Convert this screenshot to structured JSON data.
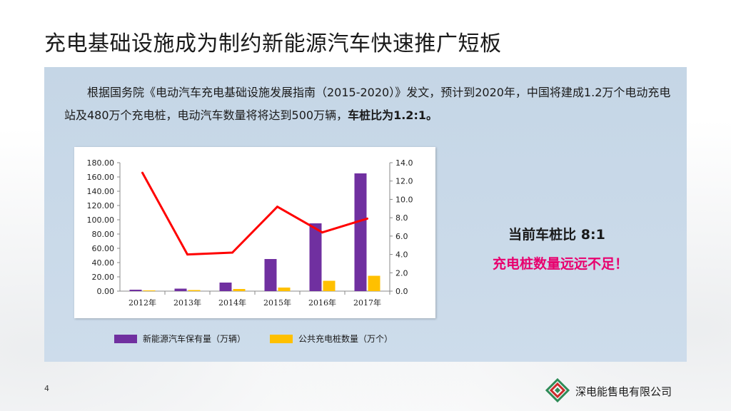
{
  "slide": {
    "title": "充电基础设施成为制约新能源汽车快速推广短板",
    "page_number": "4",
    "company": "深电能售电有限公司"
  },
  "intro": {
    "text_part1": "根据国务院《电动汽车充电基础设施发展指南（2015-2020）》发文，预计到2020年，中国将建成1.2万个电动充电站及480万个充电桩，电动汽车数量将将达到500万辆，",
    "text_bold": "车桩比为1.2:1。"
  },
  "callouts": {
    "ratio": "当前车桩比 8:1",
    "shortage": "充电桩数量远远不足！"
  },
  "colors": {
    "vehicles": "#7030a0",
    "piles": "#ffc000",
    "ratio_line": "#ff0000",
    "panel_bg": "#c9d9e9",
    "highlight": "#e8006e"
  },
  "chart_data": {
    "type": "bar",
    "categories": [
      "2012年",
      "2013年",
      "2014年",
      "2015年",
      "2016年",
      "2017年"
    ],
    "series": [
      {
        "name": "新能源汽车保有量（万辆）",
        "type": "bar",
        "axis": "left",
        "values": [
          2.0,
          3.5,
          12.0,
          45.0,
          95.0,
          165.0
        ]
      },
      {
        "name": "公共充电桩数量（万个）",
        "type": "bar",
        "axis": "left",
        "values": [
          1.0,
          1.5,
          3.0,
          5.0,
          14.5,
          21.5
        ]
      },
      {
        "name": "",
        "type": "line",
        "axis": "right",
        "values": [
          12.9,
          4.0,
          4.2,
          9.2,
          6.4,
          7.9
        ]
      }
    ],
    "y_left": {
      "ylim": [
        0,
        180
      ],
      "ticks": [
        "0.00",
        "20.00",
        "40.00",
        "60.00",
        "80.00",
        "100.00",
        "120.00",
        "140.00",
        "160.00",
        "180.00"
      ]
    },
    "y_right": {
      "ylim": [
        0,
        14
      ],
      "ticks": [
        "0.0",
        "2.0",
        "4.0",
        "6.0",
        "8.0",
        "10.0",
        "12.0",
        "14.0"
      ]
    },
    "grid": false,
    "legend_position": "bottom"
  }
}
